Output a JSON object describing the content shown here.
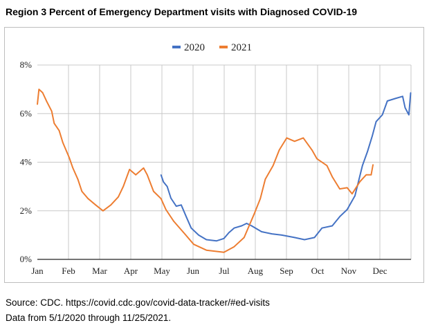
{
  "title": "Region 3 Percent of Emergency Department visits with Diagnosed COVID-19",
  "source_line": "Source: CDC. https://covid.cdc.gov/covid-data-tracker/#ed-visits",
  "data_range_line": "Data from 5/1/2020 through 11/25/2021.",
  "chart_data": {
    "type": "line",
    "title": "Region 3 Percent of Emergency Department visits with Diagnosed COVID-19",
    "xlabel": "",
    "ylabel": "",
    "x_unit": "months since Jan 1",
    "xlim": [
      0,
      12
    ],
    "ylim": [
      0,
      8
    ],
    "y_ticks": [
      "0%",
      "2%",
      "4%",
      "6%",
      "8%"
    ],
    "x_ticks": [
      "Jan",
      "Feb",
      "Mar",
      "Apr",
      "May",
      "Jun",
      "Jul",
      "Aug",
      "Sep",
      "Oct",
      "Nov",
      "Dec"
    ],
    "grid": true,
    "legend_position": "top-center",
    "series": [
      {
        "name": "2020",
        "color": "#4472c4",
        "x": [
          3.97,
          4.05,
          4.17,
          4.29,
          4.46,
          4.62,
          4.78,
          4.94,
          5.18,
          5.43,
          5.75,
          5.99,
          6.15,
          6.32,
          6.56,
          6.72,
          6.88,
          7.2,
          7.53,
          7.85,
          8.26,
          8.58,
          8.9,
          9.14,
          9.47,
          9.71,
          9.95,
          10.2,
          10.44,
          10.6,
          10.76,
          10.88,
          11.08,
          11.24,
          11.49,
          11.73,
          11.81,
          11.93,
          11.99
        ],
        "y": [
          3.48,
          3.19,
          3.0,
          2.52,
          2.19,
          2.24,
          1.76,
          1.29,
          1.0,
          0.81,
          0.76,
          0.86,
          1.1,
          1.29,
          1.38,
          1.48,
          1.38,
          1.14,
          1.05,
          1.0,
          0.9,
          0.81,
          0.9,
          1.29,
          1.38,
          1.76,
          2.05,
          2.62,
          3.86,
          4.43,
          5.1,
          5.67,
          5.95,
          6.52,
          6.62,
          6.71,
          6.24,
          5.95,
          6.86
        ]
      },
      {
        "name": "2021",
        "color": "#ed7d31",
        "x": [
          0,
          0.05,
          0.17,
          0.3,
          0.46,
          0.54,
          0.7,
          0.82,
          1.02,
          1.14,
          1.3,
          1.43,
          1.63,
          1.87,
          2.11,
          2.36,
          2.6,
          2.76,
          2.96,
          3.16,
          3.41,
          3.53,
          3.73,
          3.97,
          4.13,
          4.38,
          4.7,
          5.02,
          5.43,
          5.99,
          6.32,
          6.64,
          6.96,
          7.16,
          7.32,
          7.57,
          7.77,
          8.01,
          8.26,
          8.54,
          8.82,
          8.98,
          9.3,
          9.47,
          9.71,
          9.95,
          10.11,
          10.36,
          10.56,
          10.72,
          10.78
        ],
        "y": [
          6.38,
          7.0,
          6.86,
          6.5,
          6.1,
          5.6,
          5.3,
          4.8,
          4.2,
          3.76,
          3.3,
          2.8,
          2.5,
          2.24,
          2.0,
          2.24,
          2.57,
          3.0,
          3.7,
          3.48,
          3.76,
          3.48,
          2.8,
          2.5,
          2.05,
          1.57,
          1.1,
          0.62,
          0.38,
          0.29,
          0.52,
          0.9,
          1.86,
          2.5,
          3.3,
          3.86,
          4.5,
          5.0,
          4.86,
          5.0,
          4.5,
          4.14,
          3.86,
          3.4,
          2.9,
          2.95,
          2.7,
          3.2,
          3.48,
          3.48,
          3.9
        ]
      }
    ]
  }
}
